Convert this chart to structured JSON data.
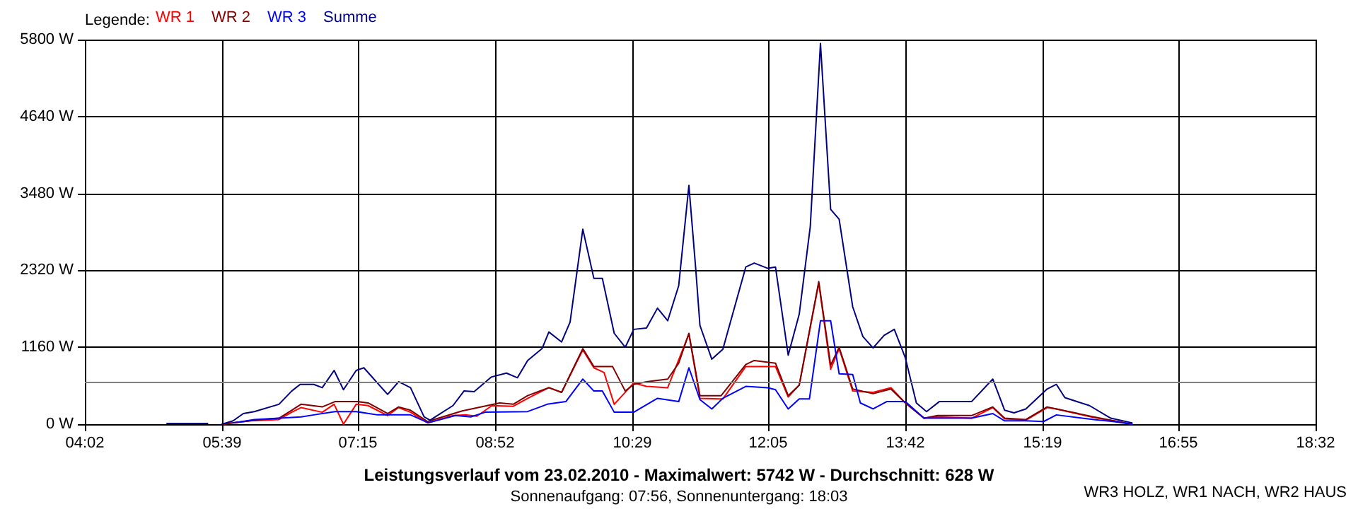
{
  "chart_data": {
    "type": "line",
    "title": "Leistungsverlauf vom 23.02.2010 - Maximalwert: 5742 W - Durchschnitt: 628 W",
    "subtitle": "Sonnenaufgang: 07:56, Sonnenuntergang: 18:03",
    "legend_title": "Legende:",
    "annotations": [
      "WR3 HOLZ, WR1 NACH, WR2 HAUS"
    ],
    "xlim": [
      4.0333,
      18.5333
    ],
    "xticks": [
      {
        "value": 4.0333,
        "label": "04:02"
      },
      {
        "value": 5.65,
        "label": "05:39"
      },
      {
        "value": 7.25,
        "label": "07:15"
      },
      {
        "value": 8.8667,
        "label": "08:52"
      },
      {
        "value": 10.4833,
        "label": "10:29"
      },
      {
        "value": 12.0833,
        "label": "12:05"
      },
      {
        "value": 13.7,
        "label": "13:42"
      },
      {
        "value": 15.3167,
        "label": "15:19"
      },
      {
        "value": 16.9167,
        "label": "16:55"
      },
      {
        "value": 18.5333,
        "label": "18:32"
      }
    ],
    "ylim": [
      0,
      5800
    ],
    "yticks": [
      {
        "value": 0,
        "label": "0 W"
      },
      {
        "value": 1160,
        "label": "1160 W"
      },
      {
        "value": 2320,
        "label": "2320 W"
      },
      {
        "value": 3480,
        "label": "3480 W"
      },
      {
        "value": 4640,
        "label": "4640 W"
      },
      {
        "value": 5800,
        "label": "5800 W"
      }
    ],
    "grid": true,
    "legend": "top left",
    "marker": "none",
    "line_style": "solid",
    "ref_lines": [
      {
        "axis": "y",
        "value": 628,
        "color": "#808080"
      }
    ],
    "series": [
      {
        "name": "WR 1",
        "color": "#ff0000",
        "x": [
          5.65,
          5.98,
          6.32,
          6.47,
          6.58,
          6.83,
          6.97,
          7.08,
          7.23,
          7.37,
          7.6,
          7.73,
          7.87,
          8.07,
          8.37,
          8.53,
          8.65,
          8.83,
          9.08,
          9.28,
          9.5,
          9.65,
          9.9,
          10.03,
          10.15,
          10.27,
          10.5,
          10.65,
          10.9,
          11.15,
          11.28,
          11.55,
          11.82,
          12.17,
          12.32,
          12.45,
          12.68,
          12.82,
          12.92,
          13.08,
          13.32,
          13.53,
          13.7,
          13.92,
          14.08,
          14.48,
          14.73,
          14.87,
          15.12,
          15.37,
          15.48,
          15.92,
          16.2,
          16.37
        ],
        "values": [
          0,
          50,
          70,
          180,
          250,
          180,
          300,
          0,
          300,
          280,
          130,
          250,
          180,
          20,
          130,
          140,
          120,
          280,
          270,
          410,
          550,
          480,
          1120,
          850,
          780,
          300,
          620,
          570,
          550,
          1360,
          390,
          380,
          870,
          870,
          410,
          590,
          2130,
          830,
          1140,
          500,
          480,
          550,
          320,
          90,
          110,
          90,
          250,
          80,
          60,
          250,
          230,
          100,
          40,
          0
        ]
      },
      {
        "name": "WR 2",
        "color": "#800000",
        "x": [
          5.65,
          5.98,
          6.32,
          6.47,
          6.58,
          6.83,
          6.98,
          7.25,
          7.37,
          7.6,
          7.73,
          7.87,
          8.07,
          8.48,
          8.92,
          9.08,
          9.25,
          9.5,
          9.65,
          9.9,
          10.03,
          10.25,
          10.4,
          10.5,
          10.65,
          10.9,
          11.03,
          11.15,
          11.28,
          11.53,
          11.82,
          11.92,
          12.17,
          12.32,
          12.45,
          12.68,
          12.82,
          12.92,
          13.08,
          13.32,
          13.53,
          13.7,
          13.92,
          14.08,
          14.48,
          14.73,
          14.87,
          15.12,
          15.37,
          15.48,
          15.92,
          16.2,
          16.37
        ],
        "values": [
          0,
          50,
          90,
          210,
          300,
          260,
          340,
          340,
          320,
          160,
          260,
          210,
          40,
          200,
          320,
          300,
          430,
          550,
          480,
          1140,
          870,
          870,
          500,
          600,
          640,
          680,
          920,
          1370,
          430,
          430,
          900,
          960,
          920,
          430,
          590,
          2150,
          890,
          1160,
          530,
          460,
          530,
          320,
          90,
          130,
          130,
          260,
          90,
          70,
          260,
          230,
          110,
          40,
          0
        ]
      },
      {
        "name": "WR 3",
        "color": "#0000ff",
        "x": [
          5.78,
          6.03,
          6.58,
          6.73,
          6.98,
          7.23,
          7.48,
          7.87,
          8.08,
          8.4,
          8.58,
          8.75,
          9.25,
          9.48,
          9.7,
          9.9,
          10.03,
          10.13,
          10.27,
          10.5,
          10.78,
          11.03,
          11.15,
          11.28,
          11.42,
          11.55,
          11.82,
          12.08,
          12.17,
          12.32,
          12.45,
          12.57,
          12.7,
          12.82,
          12.92,
          13.08,
          13.17,
          13.32,
          13.48,
          13.7,
          13.92,
          14.48,
          14.73,
          14.87,
          15.12,
          15.33,
          15.48,
          15.92,
          16.15,
          16.37
        ],
        "values": [
          20,
          70,
          110,
          140,
          190,
          190,
          140,
          140,
          20,
          130,
          110,
          180,
          190,
          300,
          340,
          680,
          500,
          500,
          180,
          180,
          390,
          340,
          850,
          370,
          230,
          390,
          570,
          550,
          520,
          230,
          380,
          380,
          1560,
          1560,
          760,
          750,
          320,
          230,
          340,
          340,
          90,
          90,
          160,
          50,
          50,
          40,
          140,
          70,
          40,
          0
        ]
      },
      {
        "name": "Summe",
        "color": "#000080",
        "x": [
          5.0,
          5.48,
          5.56,
          5.65,
          5.78,
          5.9,
          6.03,
          6.32,
          6.47,
          6.57,
          6.73,
          6.83,
          6.97,
          7.08,
          7.23,
          7.32,
          7.6,
          7.73,
          7.87,
          8.03,
          8.1,
          8.37,
          8.5,
          8.62,
          8.82,
          9.0,
          9.13,
          9.25,
          9.42,
          9.5,
          9.65,
          9.75,
          9.9,
          10.03,
          10.13,
          10.27,
          10.4,
          10.5,
          10.65,
          10.78,
          10.9,
          11.03,
          11.15,
          11.23,
          11.28,
          11.42,
          11.55,
          11.82,
          11.92,
          12.08,
          12.17,
          12.32,
          12.45,
          12.58,
          12.7,
          12.82,
          12.92,
          13.08,
          13.2,
          13.32,
          13.45,
          13.57,
          13.7,
          13.83,
          13.95,
          14.1,
          14.48,
          14.73,
          14.87,
          14.98,
          15.12,
          15.37,
          15.48,
          15.58,
          15.87,
          16.12,
          16.37
        ],
        "values": [
          10,
          10,
          null,
          0,
          50,
          160,
          190,
          300,
          500,
          600,
          600,
          550,
          810,
          520,
          810,
          850,
          450,
          640,
          550,
          110,
          60,
          280,
          500,
          490,
          710,
          770,
          700,
          960,
          1140,
          1390,
          1240,
          1540,
          2940,
          2200,
          2200,
          1370,
          1160,
          1430,
          1450,
          1750,
          1560,
          2090,
          3600,
          2350,
          1490,
          980,
          1130,
          2370,
          2430,
          2350,
          2370,
          1040,
          1660,
          2980,
          5742,
          3240,
          3090,
          1770,
          1320,
          1150,
          1340,
          1430,
          1000,
          320,
          190,
          340,
          340,
          680,
          210,
          170,
          230,
          530,
          600,
          400,
          280,
          90,
          20
        ]
      }
    ]
  }
}
